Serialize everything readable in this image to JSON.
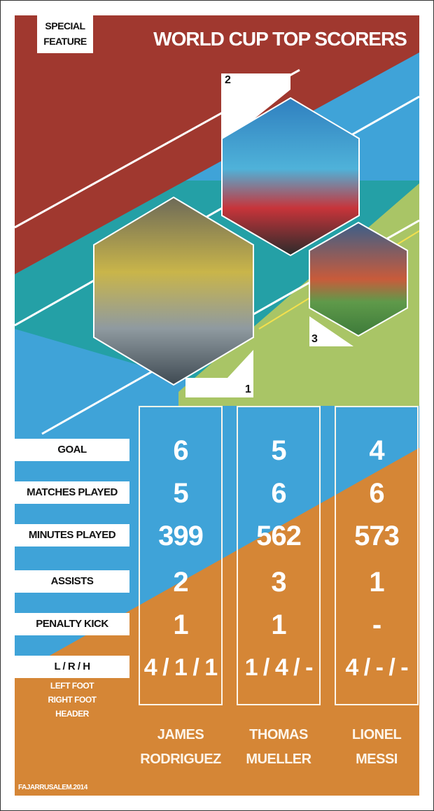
{
  "header": {
    "badge": [
      "SPECIAL",
      "FEATURE"
    ],
    "title": "WORLD CUP TOP SCORERS"
  },
  "colors": {
    "red": "#a0382f",
    "blue": "#3fa3d8",
    "teal": "#24a0a6",
    "green": "#a9c566",
    "orange": "#d58636"
  },
  "ranks": {
    "first": "1",
    "second": "2",
    "third": "3"
  },
  "stats": {
    "labels": [
      "GOAL",
      "MATCHES PLAYED",
      "MINUTES PLAYED",
      "ASSISTS",
      "PENALTY KICK",
      "L / R / H"
    ],
    "legend": [
      "LEFT FOOT",
      "RIGHT FOOT",
      "HEADER"
    ],
    "players": [
      {
        "first": "JAMES",
        "last": "RODRIGUEZ",
        "values": [
          "6",
          "5",
          "399",
          "2",
          "1",
          "4 / 1 / 1"
        ]
      },
      {
        "first": "THOMAS",
        "last": "MUELLER",
        "values": [
          "5",
          "6",
          "562",
          "3",
          "1",
          "1 / 4 / -"
        ]
      },
      {
        "first": "LIONEL",
        "last": "MESSI",
        "values": [
          "4",
          "6",
          "573",
          "1",
          "-",
          "4 / - / -"
        ]
      }
    ]
  },
  "credit": "FAJARRUSALEM.2014"
}
